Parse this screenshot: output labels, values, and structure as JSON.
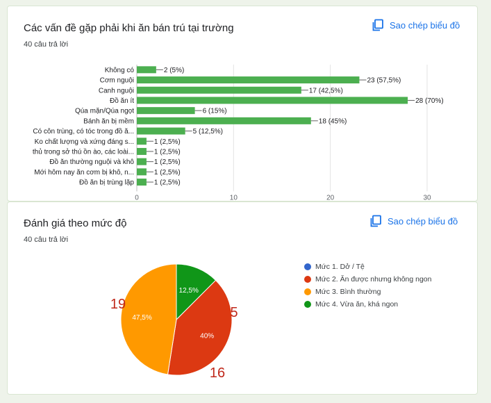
{
  "bar_card": {
    "title": "Các vấn đề gặp phải khi ăn bán trú tại trường",
    "responses": "40 câu trả lời",
    "copy_label": "Sao chép biểu đồ"
  },
  "pie_card": {
    "title": "Đánh giá theo mức độ",
    "responses": "40 câu trả lời",
    "copy_label": "Sao chép biểu đồ"
  },
  "colors": {
    "bar": "#4caf50",
    "blue": "#3366cc",
    "red": "#dc3912",
    "orange": "#ff9900",
    "green": "#109618",
    "annotation": "#c0281b",
    "link": "#1a73e8"
  },
  "chart_data": [
    {
      "type": "bar",
      "orientation": "horizontal",
      "categories": [
        "Không có",
        "Cơm nguội",
        "Canh nguội",
        "Đồ ăn ít",
        "Qúa mặn/Qúa ngọt",
        "Bánh ăn bị mềm",
        "Có côn trùng, có tóc trong đồ ă...",
        "Ko chất lượng và xứng đáng s...",
        "thủ trong sở thú ồn ào, các loài...",
        "Đồ ăn thường nguội và khô",
        "Mới hôm nay ăn cơm bị khô, n...",
        "Đồ ăn bị trùng lặp"
      ],
      "values": [
        2,
        23,
        17,
        28,
        6,
        18,
        5,
        1,
        1,
        1,
        1,
        1
      ],
      "value_labels": [
        "2 (5%)",
        "23 (57,5%)",
        "17 (42,5%)",
        "28 (70%)",
        "6 (15%)",
        "18 (45%)",
        "5 (12,5%)",
        "1 (2,5%)",
        "1 (2,5%)",
        "1 (2,5%)",
        "1 (2,5%)",
        "1 (2,5%)"
      ],
      "xlim": [
        0,
        30
      ],
      "xticks": [
        "0",
        "10",
        "20",
        "30"
      ],
      "grid": true
    },
    {
      "type": "pie",
      "labels": [
        "Mức 1. Dở / Tệ",
        "Mức 2. Ăn được nhưng không ngon",
        "Mức 3. Bình thường",
        "Mức 4. Vừa ăn, khá ngon"
      ],
      "values": [
        0,
        16,
        19,
        5
      ],
      "slice_labels": [
        "",
        "40%",
        "47,5%",
        "12,5%"
      ],
      "annotations": [
        "",
        "16",
        "19",
        "5"
      ],
      "legend": "right"
    }
  ]
}
